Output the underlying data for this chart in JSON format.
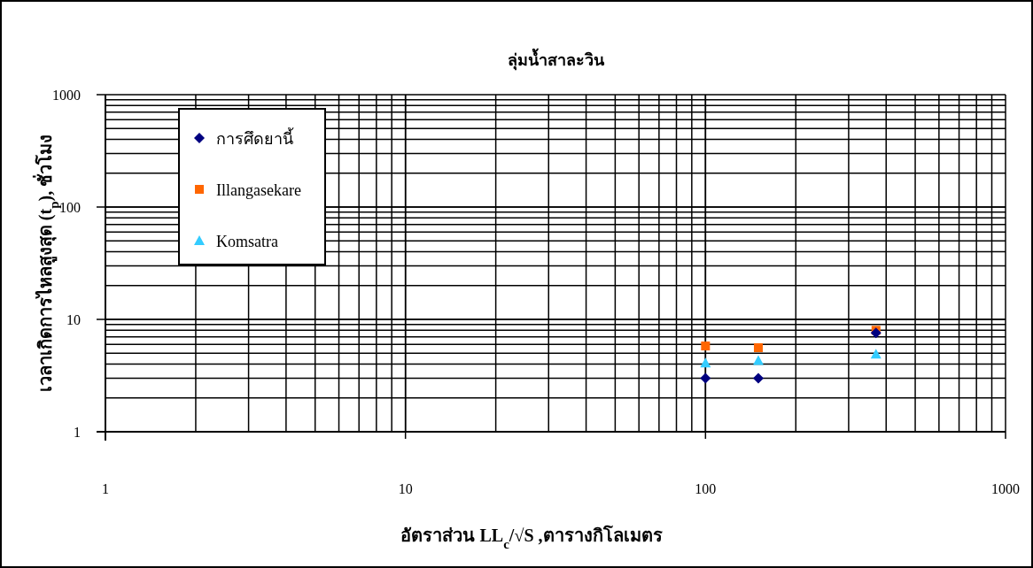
{
  "chart_data": {
    "type": "scatter",
    "title": "ลุ่มน้ำสาละวิน",
    "xlabel": "อัตราส่วน LL$_{c}$/√S ,ตารางกิโลเมตร",
    "ylabel": "เวลาเกิดการไหลสูงสุด (t$_{p}$), ชั่วโมง",
    "log": "xy",
    "grid": true,
    "legend": "top left",
    "xlim": [
      1,
      1000
    ],
    "ylim": [
      1,
      1000
    ],
    "xticks": [
      1,
      10,
      100,
      1000
    ],
    "yticks": [
      1,
      10,
      100,
      1000
    ],
    "x": [
      100,
      150,
      370
    ],
    "series": [
      {
        "name": "การศึดยานี้",
        "color": "#000080",
        "marker": "diamond",
        "values": [
          3.0,
          3.0,
          7.6
        ]
      },
      {
        "name": "Illangasekare",
        "color": "#ff6600",
        "marker": "square",
        "values": [
          5.8,
          5.6,
          8.0
        ]
      },
      {
        "name": "Komsatra",
        "color": "#33ccff",
        "marker": "triangle",
        "values": [
          4.1,
          4.3,
          4.9
        ]
      }
    ]
  }
}
